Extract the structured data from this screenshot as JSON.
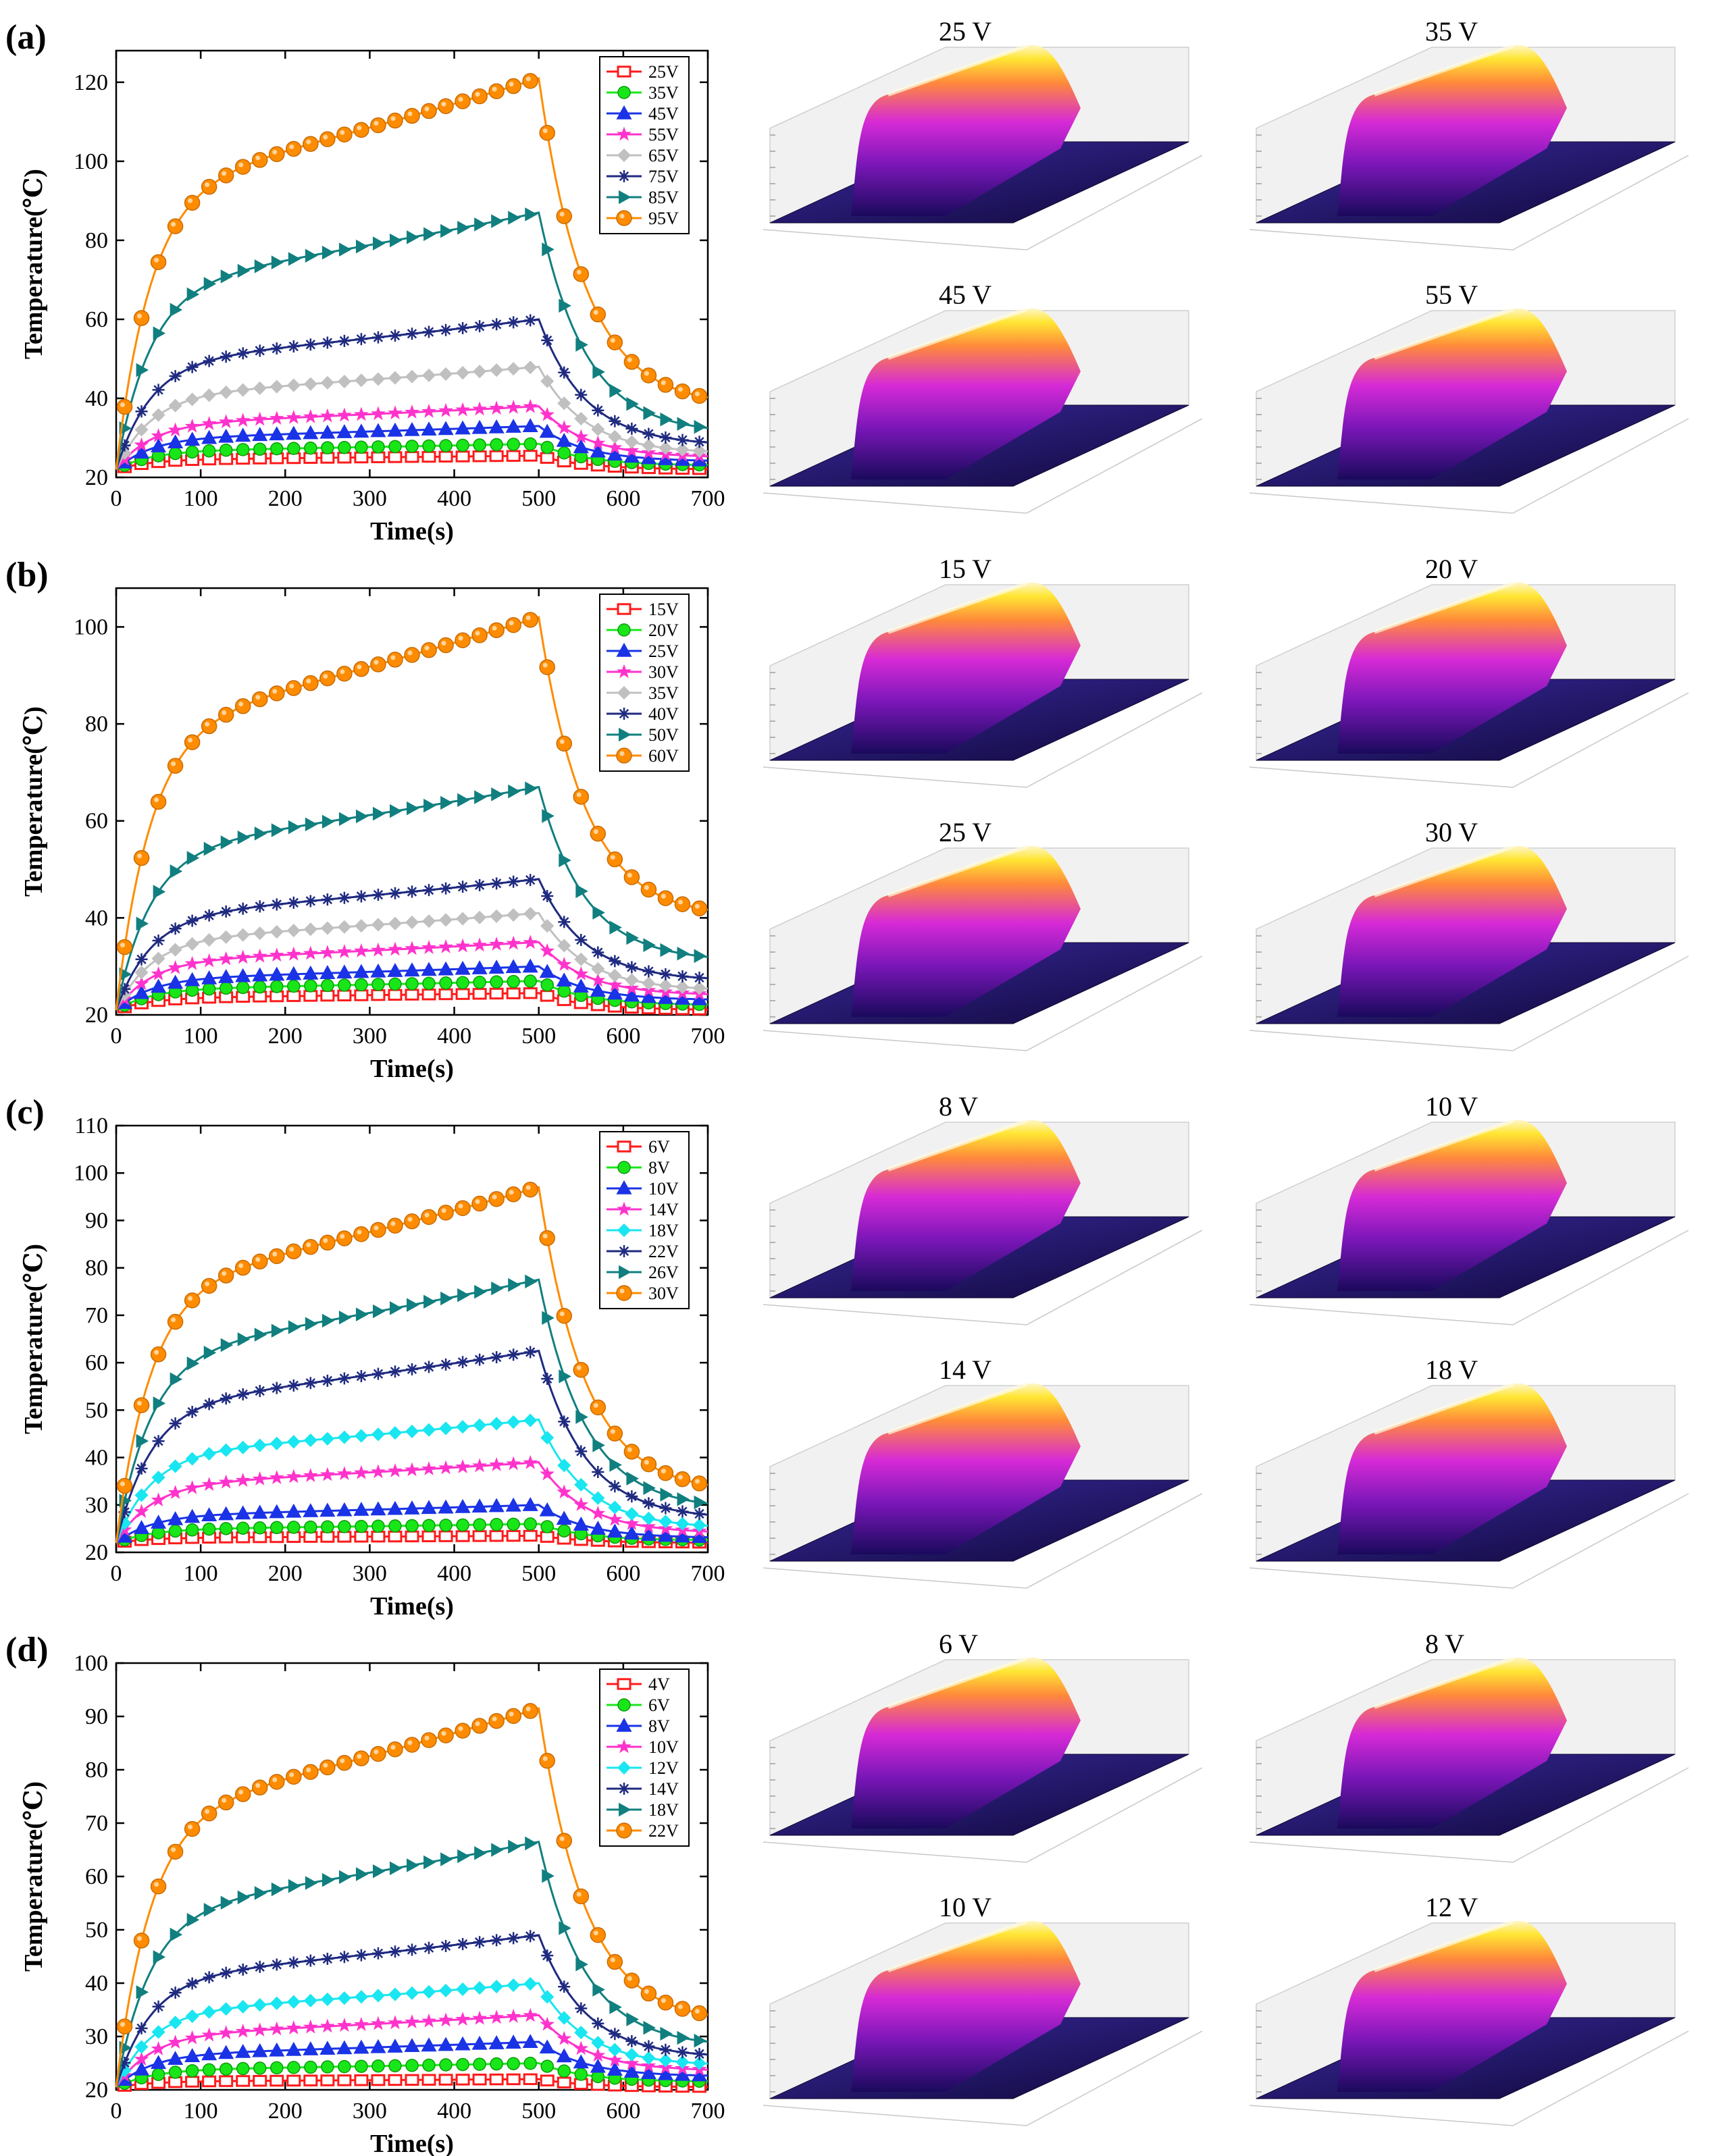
{
  "figure": {
    "panels": [
      {
        "label": "(a)",
        "surface_labels": [
          "25 V",
          "35 V",
          "45 V",
          "55 V"
        ]
      },
      {
        "label": "(b)",
        "surface_labels": [
          "15 V",
          "20 V",
          "25 V",
          "30 V"
        ]
      },
      {
        "label": "(c)",
        "surface_labels": [
          "8 V",
          "10 V",
          "14 V",
          "18 V"
        ]
      },
      {
        "label": "(d)",
        "surface_labels": [
          "6 V",
          "8 V",
          "10 V",
          "12 V"
        ]
      }
    ]
  },
  "colors": {
    "series": [
      "#ff1a1a",
      "#19e619",
      "#1a33e6",
      "#ff33cc",
      "#c0c0c0",
      "#1f2a80",
      "#117f7f",
      "#ff8c00"
    ],
    "series_alt_c_d": [
      "#ff1a1a",
      "#19e619",
      "#1a33e6",
      "#ff33cc",
      "#19e6f0",
      "#1f2a80",
      "#117f7f",
      "#ff8c00"
    ],
    "surface_low": "#1a0a5c",
    "surface_mid": "#d62ad6",
    "surface_high": "#ffe633"
  },
  "chart_data": [
    {
      "type": "line",
      "panel": "(a)",
      "xlabel": "Time(s)",
      "ylabel": "Temperature(℃)",
      "xlim": [
        0,
        700
      ],
      "ylim": [
        20,
        128
      ],
      "xticks": [
        0,
        100,
        200,
        300,
        400,
        500,
        600,
        700
      ],
      "yticks": [
        20,
        40,
        60,
        80,
        100,
        120
      ],
      "legend_position": "top-right",
      "heating_off_time": 500,
      "series": [
        {
          "name": "25V",
          "start": 22,
          "plateau": 25.5,
          "end_value": 22
        },
        {
          "name": "35V",
          "start": 22,
          "plateau": 28.5,
          "end_value": 23
        },
        {
          "name": "45V",
          "start": 22,
          "plateau": 33,
          "end_value": 24
        },
        {
          "name": "55V",
          "start": 22,
          "plateau": 38,
          "end_value": 25
        },
        {
          "name": "65V",
          "start": 22,
          "plateau": 48,
          "end_value": 26
        },
        {
          "name": "75V",
          "start": 22,
          "plateau": 60,
          "end_value": 28
        },
        {
          "name": "85V",
          "start": 22,
          "plateau": 87,
          "end_value": 31
        },
        {
          "name": "95V",
          "start": 22,
          "plateau": 121,
          "end_value": 38
        }
      ]
    },
    {
      "type": "line",
      "panel": "(b)",
      "xlabel": "Time(s)",
      "ylabel": "Temperature(℃)",
      "xlim": [
        0,
        700
      ],
      "ylim": [
        20,
        108
      ],
      "xticks": [
        0,
        100,
        200,
        300,
        400,
        500,
        600,
        700
      ],
      "yticks": [
        20,
        40,
        60,
        80,
        100
      ],
      "legend_position": "top-right",
      "heating_off_time": 500,
      "series": [
        {
          "name": "15V",
          "start": 21,
          "plateau": 24.5,
          "end_value": 21
        },
        {
          "name": "20V",
          "start": 21,
          "plateau": 27,
          "end_value": 22
        },
        {
          "name": "25V",
          "start": 21,
          "plateau": 30,
          "end_value": 23
        },
        {
          "name": "30V",
          "start": 21,
          "plateau": 35,
          "end_value": 24
        },
        {
          "name": "35V",
          "start": 21,
          "plateau": 41,
          "end_value": 25
        },
        {
          "name": "40V",
          "start": 21,
          "plateau": 48,
          "end_value": 27
        },
        {
          "name": "50V",
          "start": 21,
          "plateau": 67,
          "end_value": 31
        },
        {
          "name": "60V",
          "start": 21,
          "plateau": 102,
          "end_value": 40
        }
      ]
    },
    {
      "type": "line",
      "panel": "(c)",
      "xlabel": "Time(s)",
      "ylabel": "Temperature(℃)",
      "xlim": [
        0,
        700
      ],
      "ylim": [
        20,
        110
      ],
      "xticks": [
        0,
        100,
        200,
        300,
        400,
        500,
        600,
        700
      ],
      "yticks": [
        20,
        30,
        40,
        50,
        60,
        70,
        80,
        90,
        100,
        110
      ],
      "legend_position": "top-right",
      "heating_off_time": 500,
      "series": [
        {
          "name": "6V",
          "start": 22,
          "plateau": 23.5,
          "end_value": 22
        },
        {
          "name": "8V",
          "start": 22,
          "plateau": 26,
          "end_value": 22.5
        },
        {
          "name": "10V",
          "start": 22,
          "plateau": 30,
          "end_value": 23
        },
        {
          "name": "14V",
          "start": 22,
          "plateau": 39,
          "end_value": 24
        },
        {
          "name": "18V",
          "start": 22,
          "plateau": 48,
          "end_value": 25
        },
        {
          "name": "22V",
          "start": 22,
          "plateau": 62.5,
          "end_value": 27
        },
        {
          "name": "26V",
          "start": 22,
          "plateau": 77.5,
          "end_value": 29
        },
        {
          "name": "30V",
          "start": 22,
          "plateau": 97,
          "end_value": 32.5
        }
      ]
    },
    {
      "type": "line",
      "panel": "(d)",
      "xlabel": "Time(s)",
      "ylabel": "Temperature(℃)",
      "xlim": [
        0,
        700
      ],
      "ylim": [
        20,
        100
      ],
      "xticks": [
        0,
        100,
        200,
        300,
        400,
        500,
        600,
        700
      ],
      "yticks": [
        20,
        30,
        40,
        50,
        60,
        70,
        80,
        90,
        100
      ],
      "legend_position": "top-right",
      "heating_off_time": 500,
      "series": [
        {
          "name": "4V",
          "start": 20.5,
          "plateau": 22,
          "end_value": 20.5
        },
        {
          "name": "6V",
          "start": 20.5,
          "plateau": 25,
          "end_value": 21.5
        },
        {
          "name": "8V",
          "start": 20.5,
          "plateau": 29,
          "end_value": 22.5
        },
        {
          "name": "10V",
          "start": 20.5,
          "plateau": 34,
          "end_value": 23.5
        },
        {
          "name": "12V",
          "start": 20.5,
          "plateau": 40,
          "end_value": 24.5
        },
        {
          "name": "14V",
          "start": 20.5,
          "plateau": 49,
          "end_value": 26
        },
        {
          "name": "18V",
          "start": 20.5,
          "plateau": 66.5,
          "end_value": 28
        },
        {
          "name": "22V",
          "start": 20.5,
          "plateau": 91.5,
          "end_value": 32.5
        }
      ]
    }
  ]
}
